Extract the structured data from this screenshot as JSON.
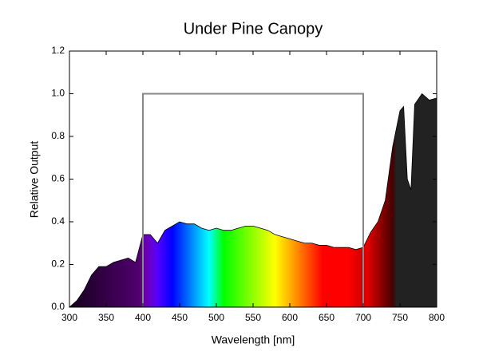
{
  "chart_data": {
    "type": "area",
    "title": "Under Pine Canopy",
    "x_label": "Wavelength [nm]",
    "y_label": "Relative Output",
    "x": [
      300,
      310,
      320,
      330,
      340,
      350,
      360,
      370,
      380,
      390,
      400,
      410,
      420,
      430,
      440,
      450,
      460,
      470,
      480,
      490,
      500,
      510,
      520,
      530,
      540,
      550,
      560,
      570,
      580,
      590,
      600,
      610,
      620,
      630,
      640,
      650,
      660,
      670,
      680,
      690,
      700,
      710,
      720,
      730,
      740,
      750,
      755,
      760,
      765,
      770,
      780,
      790,
      800
    ],
    "values": [
      0,
      0.03,
      0.08,
      0.15,
      0.19,
      0.19,
      0.21,
      0.22,
      0.23,
      0.21,
      0.34,
      0.34,
      0.3,
      0.36,
      0.38,
      0.4,
      0.39,
      0.39,
      0.37,
      0.36,
      0.37,
      0.36,
      0.36,
      0.37,
      0.38,
      0.38,
      0.37,
      0.36,
      0.34,
      0.33,
      0.32,
      0.31,
      0.3,
      0.3,
      0.29,
      0.29,
      0.28,
      0.28,
      0.28,
      0.27,
      0.28,
      0.35,
      0.4,
      0.5,
      0.75,
      0.92,
      0.94,
      0.6,
      0.55,
      0.95,
      1.0,
      0.97,
      0.98
    ],
    "box": {
      "x": [
        400,
        700
      ],
      "top": 1.0,
      "color": "#888888"
    },
    "xlim": [
      300,
      800
    ],
    "ylim": [
      0,
      1.2
    ],
    "xticks": [
      300,
      350,
      400,
      450,
      500,
      550,
      600,
      650,
      700,
      750,
      800
    ],
    "yticks": [
      {
        "value": 0,
        "label": "0.0"
      },
      {
        "value": 0.2,
        "label": "0.2"
      },
      {
        "value": 0.4,
        "label": "0.4"
      },
      {
        "value": 0.6,
        "label": "0.6"
      },
      {
        "value": 0.8,
        "label": "0.8"
      },
      {
        "value": 1,
        "label": "1.0"
      },
      {
        "value": 1.2,
        "label": "1.2"
      }
    ]
  }
}
